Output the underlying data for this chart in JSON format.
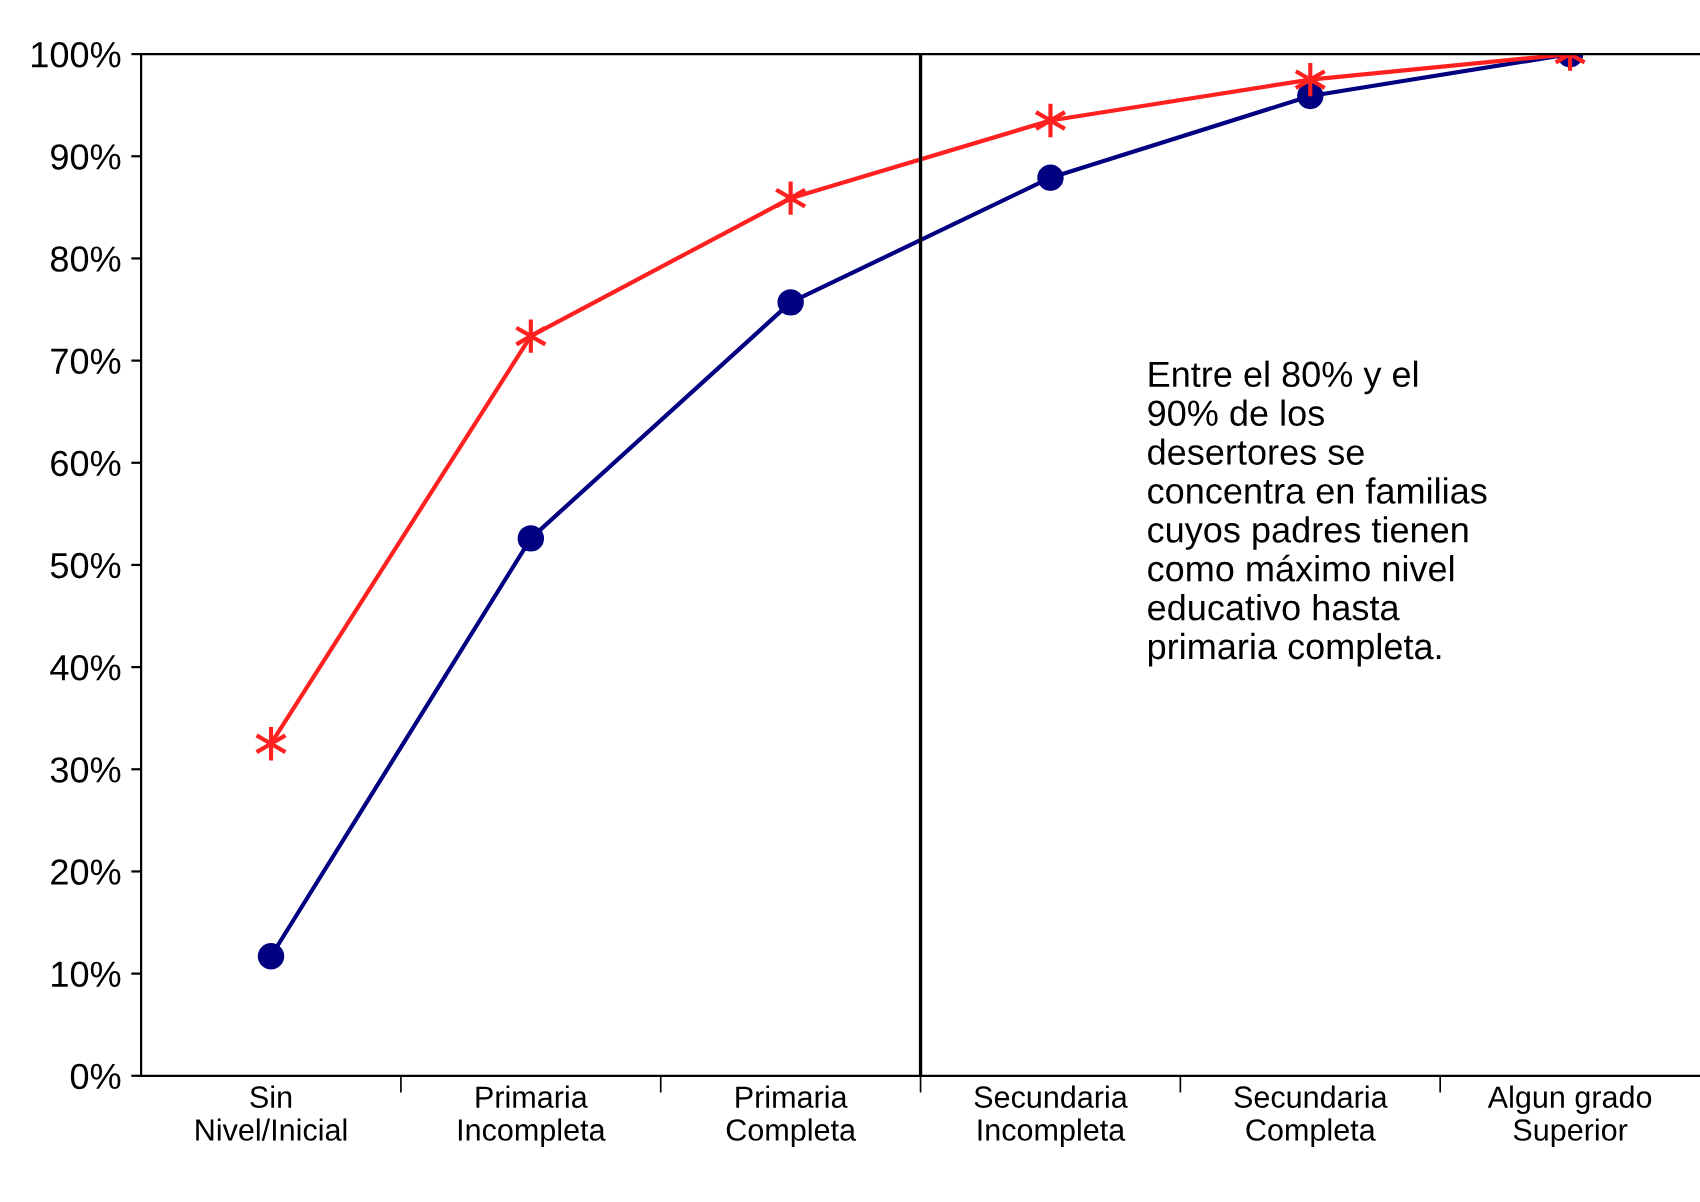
{
  "chart_data": {
    "type": "line",
    "categories": [
      "Sin\nNivel/Inicial",
      "Primaria\nIncompleta",
      "Primaria\nCompleta",
      "Secundaria\nIncompleta",
      "Secundaria\nCompleta",
      "Algun grado\nSuperior"
    ],
    "series": [
      {
        "color": "#000080",
        "marker": "circle",
        "values": [
          11.7,
          52.6,
          75.7,
          87.9,
          95.9,
          100
        ]
      },
      {
        "color": "#ff2020",
        "marker": "cross",
        "values": [
          32.5,
          72.4,
          85.9,
          93.5,
          97.5,
          100
        ]
      }
    ],
    "ylim": [
      0,
      100
    ],
    "yticks": [
      {
        "value": 0,
        "label": "0%"
      },
      {
        "value": 10,
        "label": "10%"
      },
      {
        "value": 20,
        "label": "20%"
      },
      {
        "value": 30,
        "label": "30%"
      },
      {
        "value": 40,
        "label": "40%"
      },
      {
        "value": 50,
        "label": "50%"
      },
      {
        "value": 60,
        "label": "60%"
      },
      {
        "value": 70,
        "label": "70%"
      },
      {
        "value": 80,
        "label": "80%"
      },
      {
        "value": 90,
        "label": "90%"
      },
      {
        "value": 100,
        "label": "100%"
      }
    ],
    "annotations": [
      "Entre el 80% y el\n90% de los\ndesertores se\nconcentra en familias\ncuyos padres tienen\ncomo máximo nivel\neducativo hasta\nprimaria completa."
    ],
    "grid": false,
    "legend": false
  }
}
